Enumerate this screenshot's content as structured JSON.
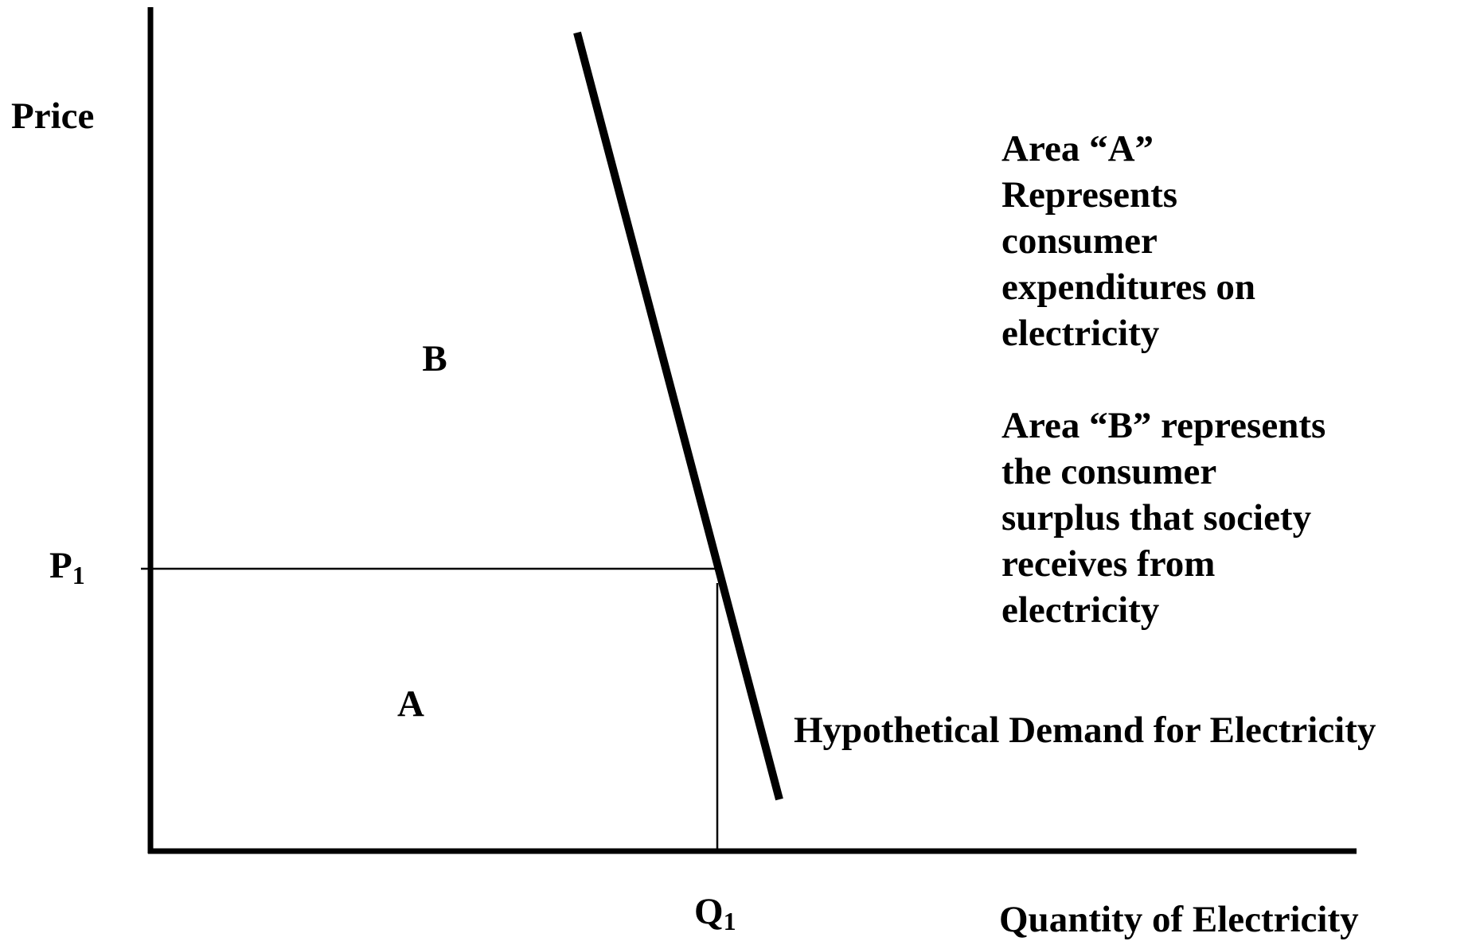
{
  "y_axis": {
    "label": "Price"
  },
  "x_axis": {
    "label": "Quantity of Electricity"
  },
  "price_level": {
    "text": "P",
    "subscript": "1"
  },
  "quantity_level": {
    "text": "Q",
    "subscript": "1"
  },
  "areas": [
    {
      "label": "B"
    },
    {
      "label": "A"
    }
  ],
  "demand_label": "Hypothetical Demand for Electricity",
  "notes": [
    {
      "lines": [
        "Area “A”",
        "Represents",
        "consumer",
        "expenditures on",
        "electricity"
      ]
    },
    {
      "lines": [
        "Area “B” represents",
        "the consumer",
        "surplus that society",
        "receives from",
        "electricity"
      ]
    }
  ]
}
